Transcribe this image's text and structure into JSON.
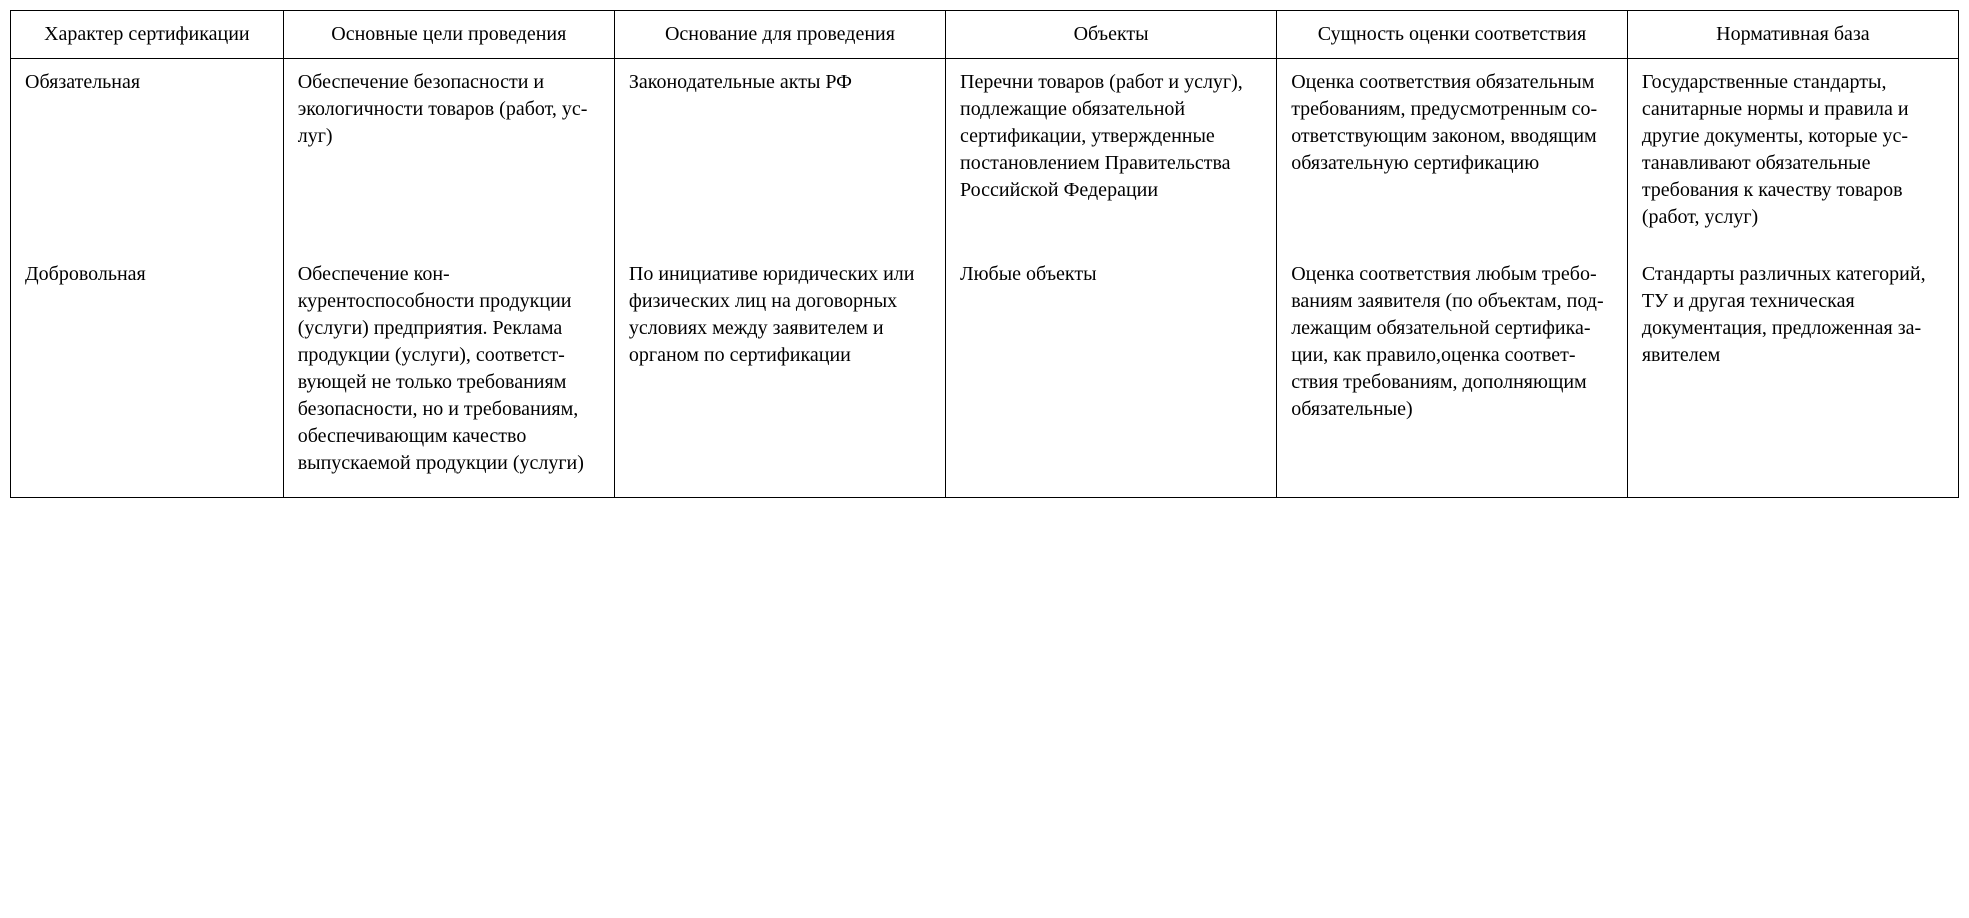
{
  "table": {
    "headers": [
      "Характер сертификации",
      "Основные цели проведения",
      "Основание для проведения",
      "Объекты",
      "Сущность оценки соответствия",
      "Нормативная база"
    ],
    "rows": [
      {
        "c1": "Обязательная",
        "c2": "Обеспечение безопасности и экологичности товаров (работ, ус­луг)",
        "c3": "Законодательные акты РФ",
        "c4": "Перечни товаров (работ и услуг), подлежащие обяза­тельной сертифика­ции, утвержденные постановлением Правительства Российской Федерации",
        "c5": "Оценка соответст­вия обязательным требованиям, пре­дусмотренным со­ответствующим за­коном, вводящим обязательную сер­тификацию",
        "c6": "Государственные стандарты, санитар­ные нормы и пра­вила и другие доку­менты, которые ус­танавливают обяза­тельные требования к качеству товаров (работ, услуг)"
      },
      {
        "c1": "Добровольная",
        "c2": "Обеспечение кон­курентоспособнос­ти продукции (ус­луги) предприятия. Реклама продукции (услуги), соответст­вующей не только требованиям безо­пасности, но и тре­бованиям, обеспе­чивающим качест­во выпускаемой продукции (услуги)",
        "c3": "По инициативе юридических или физических лиц на договорных услови­ях между заявите­лем и органом по сертификации",
        "c4": "Любые объекты",
        "c5": "Оценка соответст­вия любым требо­ваниям заявителя (по объектам, под­лежащим обяза­тельной сертифика­ции, как прави­ло,оценка соответ­ствия требованиям, дополняющим обя­зательные)",
        "c6": "Стандарты различ­ных категорий, ТУ и другая техничес­кая документация, предложенная за­явителем"
      }
    ]
  }
}
